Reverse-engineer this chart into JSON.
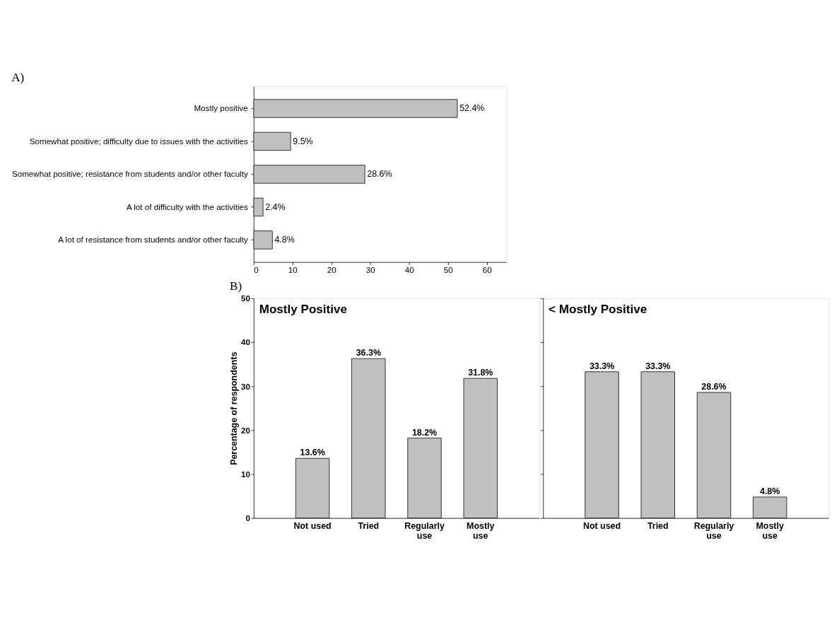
{
  "chart_data": [
    {
      "type": "bar",
      "orientation": "horizontal",
      "title": "A)",
      "categories": [
        "Mostly positive",
        "Somewhat positive; difficulty due to issues with the activities",
        "Somewhat positive; resistance from students and/or other faculty",
        "A lot of difficulty with the activities",
        "A lot of resistance from students and/or other faculty"
      ],
      "values": [
        52.4,
        9.5,
        28.6,
        2.4,
        4.8
      ],
      "value_labels": [
        "52.4%",
        "9.5%",
        "28.6%",
        "2.4%",
        "4.8%"
      ],
      "colors": [
        "#c0c0c0",
        "#c0c0c0",
        "#c0c0c0",
        "#c0c0c0",
        "#c0c0c0"
      ],
      "xlim": [
        0,
        65
      ],
      "xticks": [
        0,
        10,
        20,
        30,
        40,
        50,
        60
      ],
      "grid": false
    },
    {
      "type": "bar",
      "title": "Mostly Positive",
      "annotations": [
        "B)"
      ],
      "ylabel": "Percentage of respondents",
      "categories": [
        "Not used",
        "Tried",
        "Regularly use",
        "Mostly use"
      ],
      "values": [
        13.6,
        36.3,
        18.2,
        31.8
      ],
      "value_labels": [
        "13.6%",
        "36.3%",
        "18.2%",
        "31.8%"
      ],
      "colors": [
        "#c0c0c0",
        "#c0c0c0",
        "#c0c0c0",
        "#c0c0c0"
      ],
      "ylim": [
        0,
        50
      ],
      "yticks": [
        0,
        10,
        20,
        30,
        40,
        50
      ],
      "grid": false
    },
    {
      "type": "bar",
      "title": "< Mostly Positive",
      "categories": [
        "Not used",
        "Tried",
        "Regularly use",
        "Mostly use"
      ],
      "values": [
        33.3,
        33.3,
        28.6,
        4.8
      ],
      "value_labels": [
        "33.3%",
        "33.3%",
        "28.6%",
        "4.8%"
      ],
      "colors": [
        "#c0c0c0",
        "#c0c0c0",
        "#c0c0c0",
        "#c0c0c0"
      ],
      "ylim": [
        0,
        50
      ],
      "yticks": [
        0,
        10,
        20,
        30,
        40,
        50
      ],
      "tick_labels": "x",
      "grid": false
    }
  ]
}
